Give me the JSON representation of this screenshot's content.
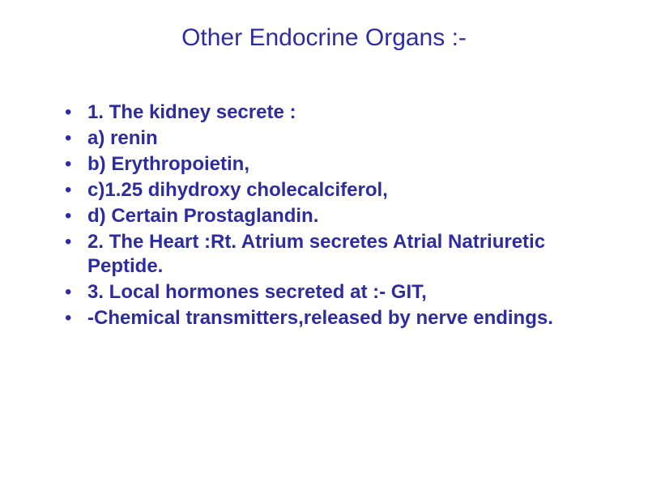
{
  "slide": {
    "title": "Other Endocrine Organs :-",
    "title_color": "#2d2da0",
    "title_fontsize": 30,
    "body_color": "#2d2da0",
    "body_fontsize": 24,
    "background_color": "#ffffff",
    "bullets": [
      "1. The kidney secrete :",
      "a) renin",
      "b) Erythropoietin,",
      "c)1.25 dihydroxy cholecalciferol,",
      "d) Certain Prostaglandin.",
      "2. The Heart :Rt. Atrium secretes Atrial Natriuretic Peptide.",
      "3. Local hormones secreted at :- GIT,",
      "-Chemical transmitters,released by nerve endings."
    ]
  }
}
